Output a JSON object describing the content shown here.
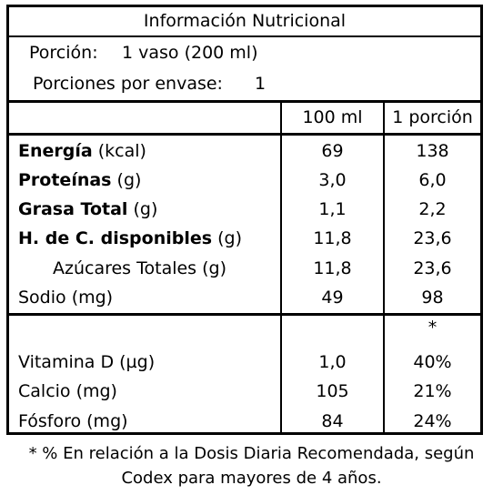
{
  "title": "Información Nutricional",
  "serving": {
    "portion_label": "Porción:",
    "portion_value": "1 vaso (200 ml)",
    "servings_label": "Porciones por envase:",
    "servings_value": "1"
  },
  "columns": {
    "col1": "100 ml",
    "col2": "1 porción"
  },
  "nutrients": [
    {
      "name": "Energía",
      "unit": "(kcal)",
      "v100": "69",
      "vportion": "138"
    },
    {
      "name": "Proteínas",
      "unit": "(g)",
      "v100": "3,0",
      "vportion": "6,0"
    },
    {
      "name": "Grasa Total",
      "unit": "(g)",
      "v100": "1,1",
      "vportion": "2,2"
    },
    {
      "name": "H. de C. disponibles",
      "unit": "(g)",
      "v100": "11,8",
      "vportion": "23,6"
    },
    {
      "name": "Azúcares Totales (g)",
      "unit": "",
      "v100": "11,8",
      "vportion": "23,6"
    },
    {
      "name": "Sodio (mg)",
      "unit": "",
      "v100": "49",
      "vportion": "98"
    }
  ],
  "vitamins_marker": "*",
  "vitamins": [
    {
      "name": "Vitamina D (µg)",
      "v100": "1,0",
      "vportion": "40%"
    },
    {
      "name": "Calcio (mg)",
      "v100": "105",
      "vportion": "21%"
    },
    {
      "name": "Fósforo (mg)",
      "v100": "84",
      "vportion": "24%"
    }
  ],
  "footnote": {
    "line1": "* % En relación a la Dosis Diaria Recomendada, según",
    "line2": "Codex para mayores de 4 años."
  }
}
